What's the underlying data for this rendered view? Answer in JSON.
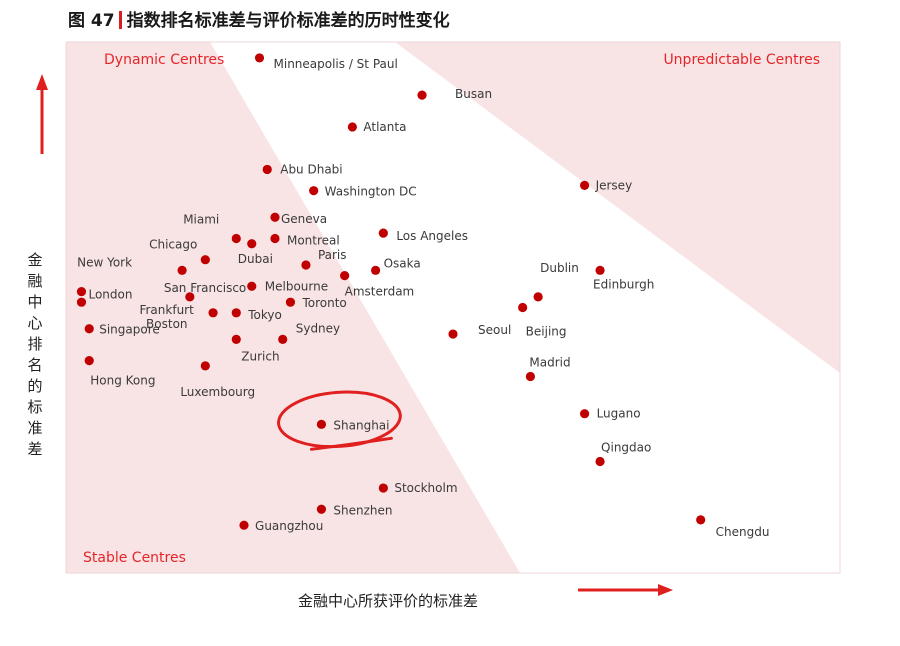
{
  "figure": {
    "label": "图 47",
    "title": "指数排名标准差与评价标准差的历时性变化"
  },
  "colors": {
    "zone_fill": "#f9e4e5",
    "zone_label": "#e4262b",
    "point": "#c00000",
    "arrow": "#e0201f",
    "highlight_circle": "#e0201f"
  },
  "chart_data": {
    "type": "scatter",
    "title": "指数排名标准差与评价标准差的历时性变化",
    "xlabel": "金融中心所获评价的标准差",
    "ylabel": "金融中心排名的标准差",
    "xlim": [
      0,
      100
    ],
    "ylim": [
      0,
      100
    ],
    "axis_ticks": false,
    "grid": false,
    "legend": "none",
    "zones": [
      {
        "name": "Dynamic Centres",
        "position": "top-left"
      },
      {
        "name": "Unpredictable Centres",
        "position": "top-right"
      },
      {
        "name": "Stable Centres",
        "position": "bottom-left"
      }
    ],
    "highlighted": "Shanghai",
    "points": [
      {
        "name": "Minneapolis / St Paul",
        "x": 25,
        "y": 97
      },
      {
        "name": "Busan",
        "x": 46,
        "y": 90
      },
      {
        "name": "Atlanta",
        "x": 37,
        "y": 84
      },
      {
        "name": "Abu Dhabi",
        "x": 26,
        "y": 76
      },
      {
        "name": "Washington DC",
        "x": 32,
        "y": 72
      },
      {
        "name": "Jersey",
        "x": 67,
        "y": 73
      },
      {
        "name": "Geneva",
        "x": 27,
        "y": 67
      },
      {
        "name": "Miami",
        "x": 22,
        "y": 63
      },
      {
        "name": "Dubai",
        "x": 24,
        "y": 62
      },
      {
        "name": "Montreal",
        "x": 27,
        "y": 63
      },
      {
        "name": "Los Angeles",
        "x": 41,
        "y": 64
      },
      {
        "name": "Chicago",
        "x": 18,
        "y": 59
      },
      {
        "name": "Paris",
        "x": 31,
        "y": 58
      },
      {
        "name": "Osaka",
        "x": 40,
        "y": 57
      },
      {
        "name": "Amsterdam",
        "x": 36,
        "y": 56
      },
      {
        "name": "New York",
        "x": 15,
        "y": 57
      },
      {
        "name": "San Francisco",
        "x": 16,
        "y": 52
      },
      {
        "name": "Melbourne",
        "x": 24,
        "y": 54
      },
      {
        "name": "Toronto",
        "x": 29,
        "y": 51
      },
      {
        "name": "Dublin",
        "x": 61,
        "y": 52
      },
      {
        "name": "Edinburgh",
        "x": 69,
        "y": 57
      },
      {
        "name": "London",
        "x": 2,
        "y": 53
      },
      {
        "name": "Frankfurt",
        "x": 2,
        "y": 51
      },
      {
        "name": "Tokyo",
        "x": 22,
        "y": 49
      },
      {
        "name": "Singapore",
        "x": 3,
        "y": 46
      },
      {
        "name": "Boston",
        "x": 19,
        "y": 49
      },
      {
        "name": "Sydney",
        "x": 28,
        "y": 44
      },
      {
        "name": "Beijing",
        "x": 59,
        "y": 50
      },
      {
        "name": "Seoul",
        "x": 50,
        "y": 45
      },
      {
        "name": "Zurich",
        "x": 22,
        "y": 44
      },
      {
        "name": "Hong Kong",
        "x": 3,
        "y": 40
      },
      {
        "name": "Luxembourg",
        "x": 18,
        "y": 39
      },
      {
        "name": "Madrid",
        "x": 60,
        "y": 37
      },
      {
        "name": "Lugano",
        "x": 67,
        "y": 30
      },
      {
        "name": "Shanghai",
        "x": 33,
        "y": 28
      },
      {
        "name": "Qingdao",
        "x": 69,
        "y": 21
      },
      {
        "name": "Stockholm",
        "x": 41,
        "y": 16
      },
      {
        "name": "Shenzhen",
        "x": 33,
        "y": 12
      },
      {
        "name": "Guangzhou",
        "x": 23,
        "y": 9
      },
      {
        "name": "Chengdu",
        "x": 82,
        "y": 10
      }
    ]
  }
}
